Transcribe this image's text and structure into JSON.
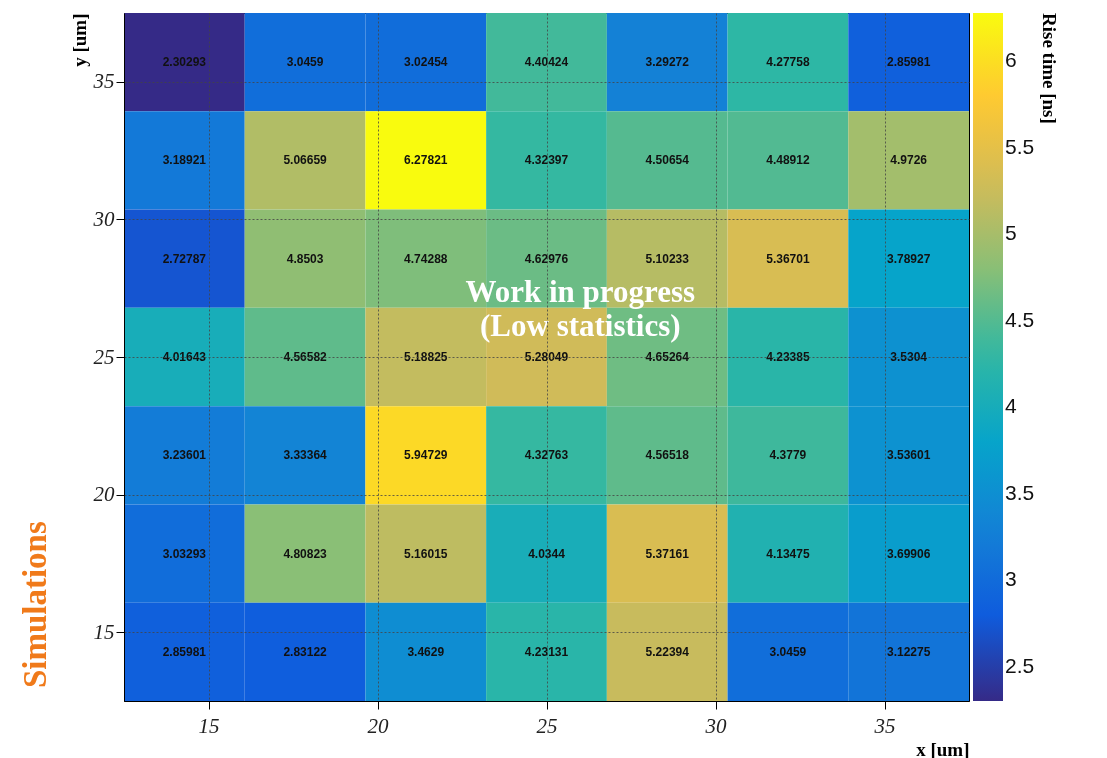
{
  "chart_data": {
    "type": "heatmap",
    "xlabel": "x [um]",
    "ylabel": "y [um]",
    "clabel": "Rise time [ns]",
    "cells": [
      [
        2.30293,
        3.0459,
        3.02454,
        4.40424,
        3.29272,
        4.27758,
        2.85981
      ],
      [
        3.18921,
        5.06659,
        6.27821,
        4.32397,
        4.50654,
        4.48912,
        4.9726
      ],
      [
        2.72787,
        4.8503,
        4.74288,
        4.62976,
        5.10233,
        5.36701,
        3.78927
      ],
      [
        4.01643,
        4.56582,
        5.18825,
        5.28049,
        4.65264,
        4.23385,
        3.5304
      ],
      [
        3.23601,
        3.33364,
        5.94729,
        4.32763,
        4.56518,
        4.3779,
        3.53601
      ],
      [
        3.03293,
        4.80823,
        5.16015,
        4.0344,
        5.37161,
        4.13475,
        3.69906
      ],
      [
        2.85981,
        2.83122,
        3.4629,
        4.23131,
        5.22394,
        3.0459,
        3.12275
      ]
    ],
    "xlim": [
      12.5,
      37.5
    ],
    "xticks": [
      15,
      20,
      25,
      30,
      35
    ],
    "ylim": [
      12.5,
      37.5
    ],
    "yticks": [
      15,
      20,
      25,
      30,
      35
    ],
    "clim": [
      2.30293,
      6.27821
    ],
    "cticks": [
      2.5,
      3,
      3.5,
      4,
      4.5,
      5,
      5.5,
      6
    ],
    "grid": true,
    "data_labels": true,
    "annotations": [
      "Work in progress\n(Low statistics)",
      "Simulations"
    ]
  }
}
